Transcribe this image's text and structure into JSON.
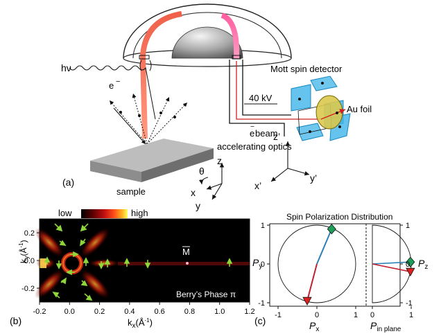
{
  "panel_a": {
    "label": "(a)",
    "photon": "hν",
    "electron": "e",
    "electron_sup": "−",
    "sample": "sample",
    "detector_title": "Mott spin detector",
    "voltage": "40 kV",
    "beam_line1": "e",
    "beam_line1_rest": " beam",
    "beam_line2": "accelerating optics",
    "foil": "Au foil",
    "axes": {
      "theta": "θ",
      "z": "z",
      "x": "x",
      "y": "y"
    },
    "det_axes": {
      "z": "z’",
      "x": "x’",
      "y": "y’"
    }
  },
  "panel_b": {
    "label": "(b)",
    "colorbar": {
      "low": "low",
      "high": "high",
      "colors": [
        "#000000",
        "#5a0000",
        "#c01010",
        "#ff4a1a",
        "#ffb020",
        "#ffff60"
      ]
    },
    "caption": "Berry’s Phase π",
    "point_label": "M",
    "chart_data": {
      "type": "heatmap",
      "xlabel": "kx(Å⁻¹)",
      "ylabel": "ky(Å⁻¹)",
      "xlim": [
        -0.2,
        1.2
      ],
      "ylim": [
        -0.3,
        0.3
      ],
      "x_ticks": [
        "-0.2",
        "0.0",
        "0.2",
        "0.4",
        "0.6",
        "0.8",
        "1.0",
        "1.2"
      ],
      "y_ticks": [
        "0.2",
        "0.0",
        "-0.2"
      ],
      "annotations": [
        {
          "text": "M",
          "x": 0.8,
          "y": 0.0
        }
      ]
    }
  },
  "panel_c": {
    "label": "(c)",
    "title": "Spin Polarization Distribution",
    "left": {
      "type": "scatter",
      "xlabel": "Px",
      "ylabel": "Py",
      "xlim": [
        -1,
        1
      ],
      "ylim": [
        -1,
        1
      ],
      "x_ticks": [
        "-1",
        "0",
        "1"
      ],
      "y_ticks": [
        "1",
        "0",
        "-1"
      ],
      "series": [
        {
          "marker": "diamond",
          "color": "#1f9e5a",
          "x": 0.38,
          "y": 0.9
        },
        {
          "marker": "triangle",
          "color": "#e02020",
          "x": -0.25,
          "y": -0.95
        }
      ]
    },
    "right": {
      "type": "scatter",
      "xlabel": "Pin plane",
      "ylabel": "Pz",
      "xlim": [
        0,
        1
      ],
      "ylim": [
        -1,
        1
      ],
      "x_ticks": [
        "0",
        "1"
      ],
      "y_ticks": [
        "1",
        "0",
        "-1"
      ],
      "series": [
        {
          "marker": "diamond",
          "color": "#1f9e5a",
          "x": 0.98,
          "y": 0.05
        },
        {
          "marker": "triangle",
          "color": "#e02020",
          "x": 0.98,
          "y": -0.2
        }
      ]
    }
  }
}
